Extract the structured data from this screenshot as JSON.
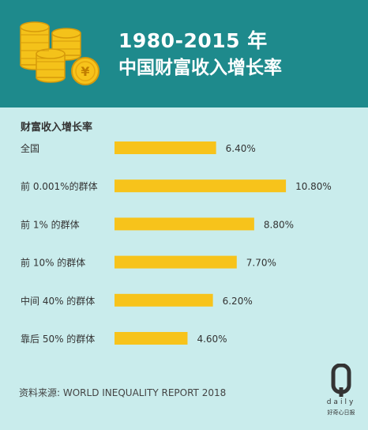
{
  "header": {
    "title_line1": "1980-2015 年",
    "title_line2": "中国财富收入增长率"
  },
  "chart_data": {
    "type": "bar",
    "orientation": "horizontal",
    "title": "财富收入增长率",
    "categories": [
      "全国",
      "前 0.001%的群体",
      "前 1% 的群体",
      "前 10% 的群体",
      "中间 40% 的群体",
      "靠后 50% 的群体"
    ],
    "values": [
      6.4,
      10.8,
      8.8,
      7.7,
      6.2,
      4.6
    ],
    "value_labels": [
      "6.40%",
      "10.80%",
      "8.80%",
      "7.70%",
      "6.20%",
      "4.60%"
    ],
    "unit": "%",
    "grid": false,
    "bar_color": "#f7c31b"
  },
  "source": "资料来源: WORLD INEQUALITY REPORT 2018",
  "logo": {
    "letter": "Q",
    "word": "daily",
    "tagline": "好奇心日报"
  },
  "colors": {
    "header_bg": "#1e8a8c",
    "body_bg": "#c9ecec",
    "bar": "#f7c31b",
    "coin": "#f4c21a"
  }
}
